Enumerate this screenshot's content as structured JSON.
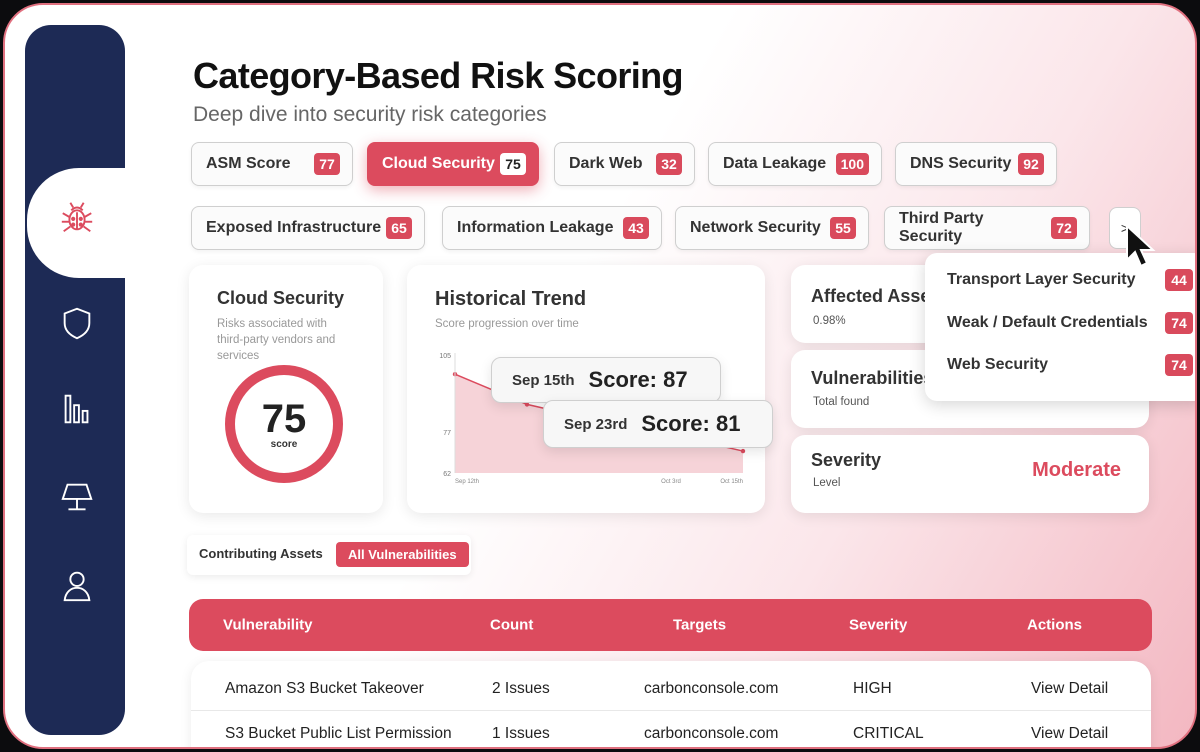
{
  "page": {
    "title": "Category-Based Risk Scoring",
    "subtitle": "Deep dive into security risk categories"
  },
  "sidebar": {
    "icons": [
      "bug-icon",
      "shield-icon",
      "bar-chart-icon",
      "monitor-icon",
      "user-icon"
    ]
  },
  "categories": [
    {
      "label": "ASM Score",
      "score": "77"
    },
    {
      "label": "Cloud Security",
      "score": "75",
      "active": true
    },
    {
      "label": "Dark Web",
      "score": "32"
    },
    {
      "label": "Data Leakage",
      "score": "100"
    },
    {
      "label": "DNS Security",
      "score": "92"
    },
    {
      "label": "Exposed Infrastructure",
      "score": "65"
    },
    {
      "label": "Information Leakage",
      "score": "43"
    },
    {
      "label": "Network Security",
      "score": "55"
    },
    {
      "label": "Third Party Security",
      "score": "72"
    }
  ],
  "more_button": {
    "label": ">"
  },
  "dropdown": [
    {
      "label": "Transport Layer Security",
      "score": "44"
    },
    {
      "label": "Weak / Default Credentials",
      "score": "74"
    },
    {
      "label": "Web Security",
      "score": "74"
    }
  ],
  "score_card": {
    "title": "Cloud Security",
    "description": "Risks associated with third-party vendors and services",
    "score": "75",
    "score_label": "score",
    "accent": "#dc4b5e"
  },
  "trend_card": {
    "title": "Historical Trend",
    "subtitle": "Score progression over time",
    "y_ticks": [
      "105",
      "77",
      "62"
    ],
    "x_ticks": [
      "Sep 12th",
      "Oct 3rd",
      "Oct 15th"
    ],
    "tooltips": [
      {
        "date": "Sep 15th",
        "score": "Score: 87"
      },
      {
        "date": "Sep 23rd",
        "score": "Score: 81"
      }
    ]
  },
  "chart_data": {
    "type": "area",
    "x": [
      "Sep 12th",
      "Sep 15th",
      "Sep 23rd",
      "Oct 3rd",
      "Oct 15th"
    ],
    "series": [
      {
        "values": [
          98,
          87,
          81,
          76,
          70
        ]
      }
    ],
    "ylim": [
      62,
      105
    ],
    "grid": false
  },
  "stats": {
    "affected": {
      "title": "Affected Assets",
      "value": "0.98%"
    },
    "vulns": {
      "title": "Vulnerabilities",
      "sub": "Total found"
    },
    "severity": {
      "title": "Severity",
      "sub": "Level",
      "value": "Moderate"
    }
  },
  "tabs": {
    "contributing": "Contributing Assets",
    "all": "All Vulnerabilities"
  },
  "table": {
    "headers": [
      "Vulnerability",
      "Count",
      "Targets",
      "Severity",
      "Actions"
    ],
    "rows": [
      [
        "Amazon S3 Bucket Takeover",
        "2 Issues",
        "carbonconsole.com",
        "HIGH",
        "View Detail"
      ],
      [
        "S3 Bucket Public List Permission",
        "1 Issues",
        "carbonconsole.com",
        "CRITICAL",
        "View Detail"
      ]
    ]
  }
}
